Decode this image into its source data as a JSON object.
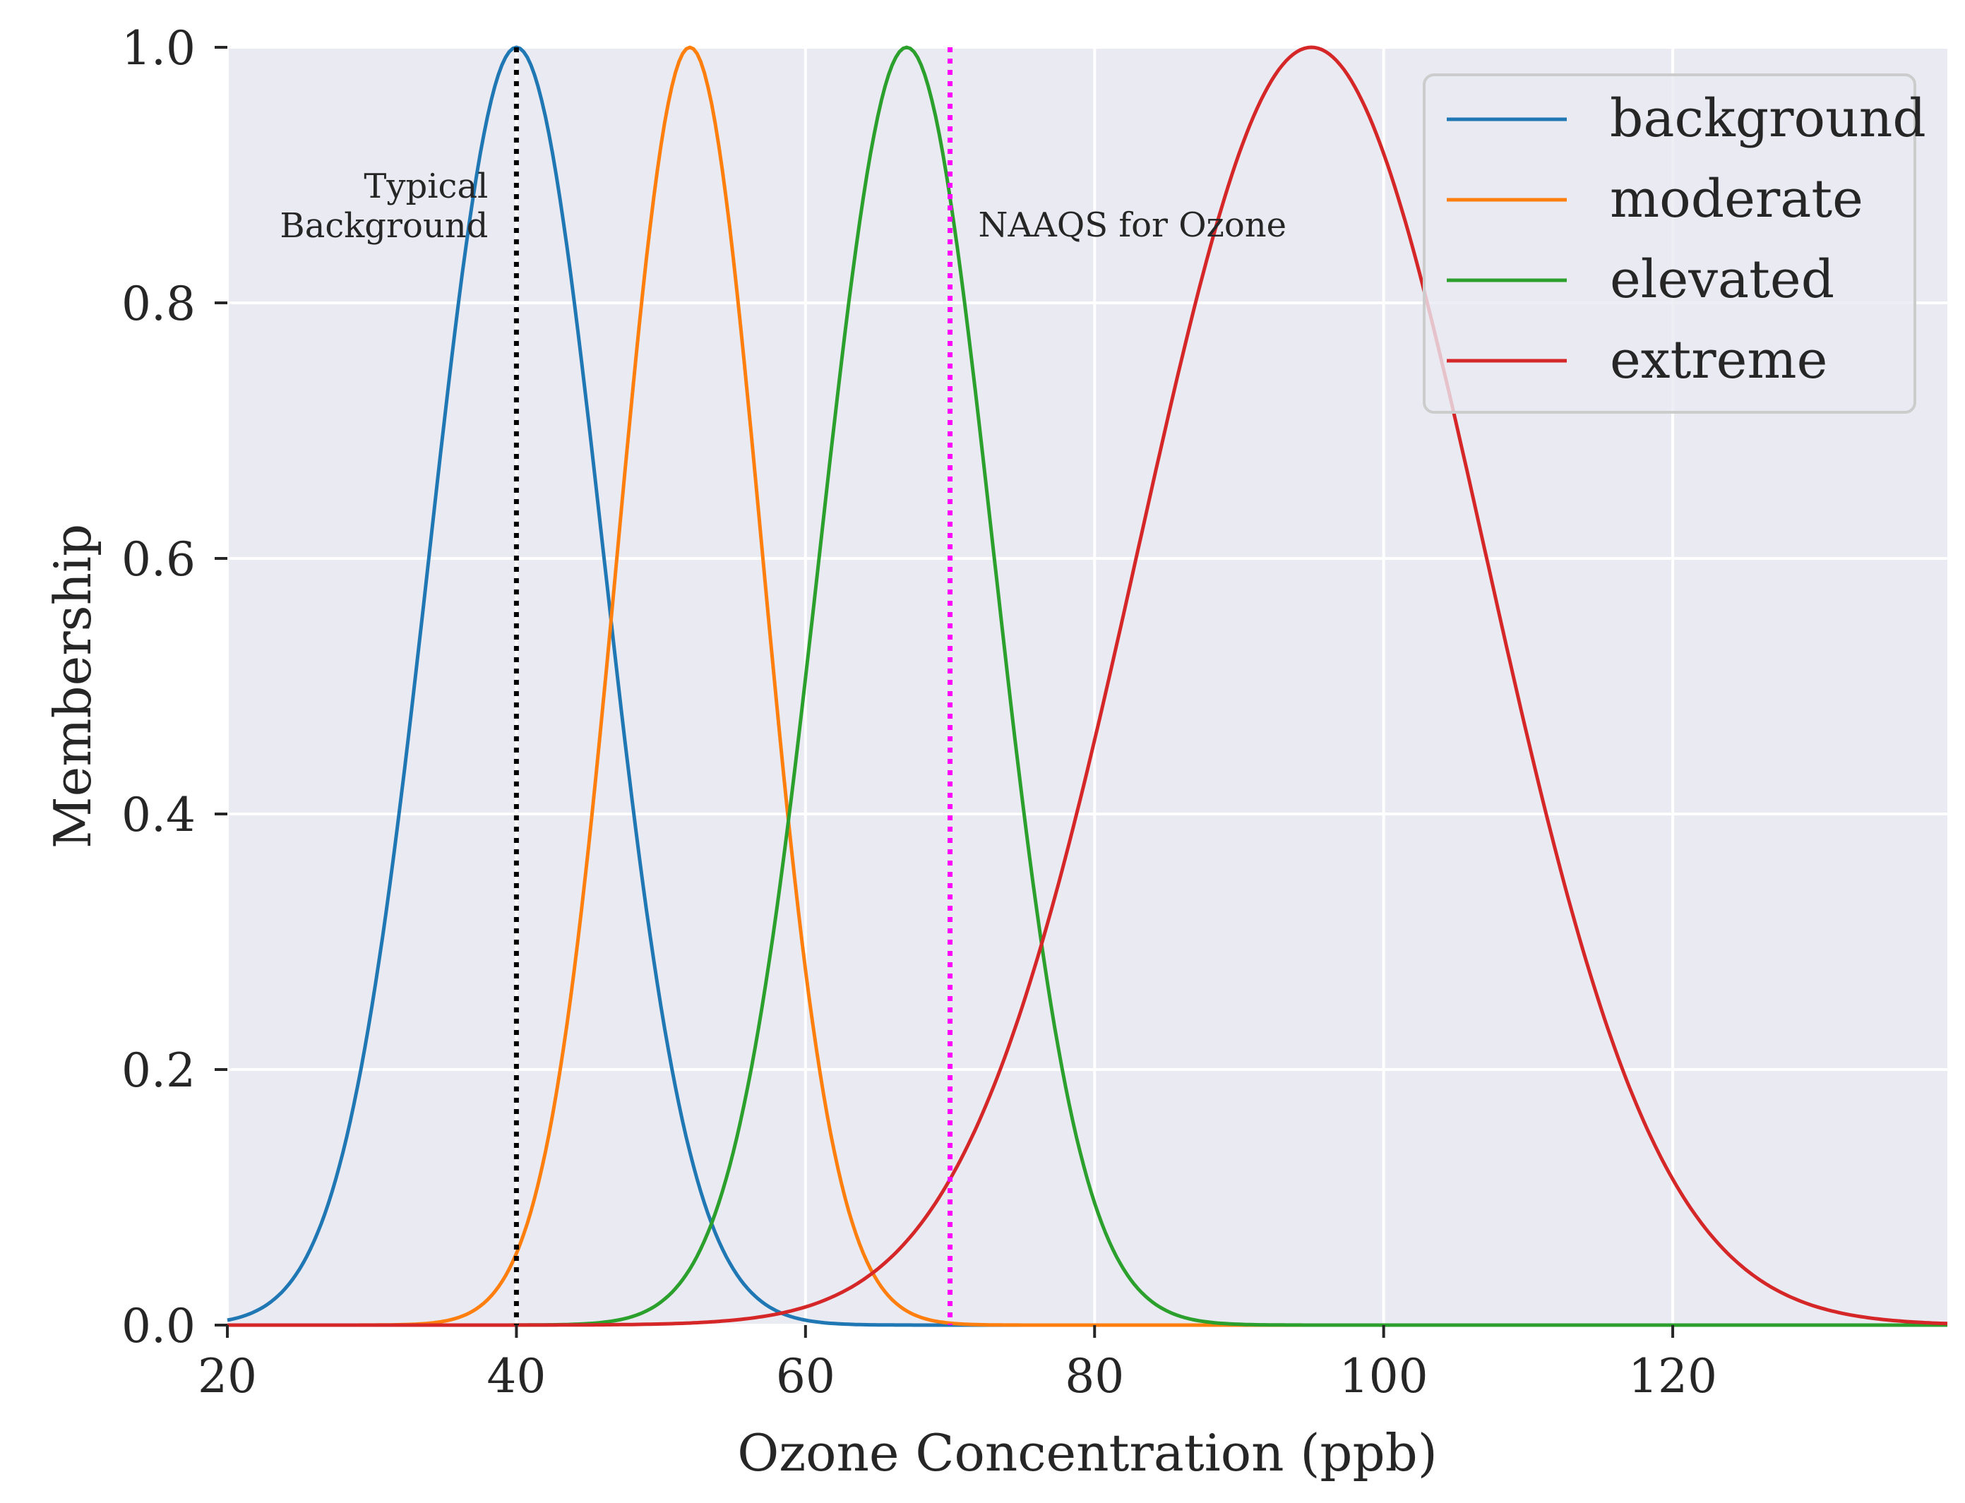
{
  "chart_data": {
    "type": "line",
    "title": "",
    "xlabel": "Ozone Concentration (ppb)",
    "ylabel": "Membership",
    "xlim": [
      20,
      139
    ],
    "ylim": [
      0,
      1
    ],
    "xticks": [
      20,
      40,
      60,
      80,
      100,
      120
    ],
    "yticks": [
      0.0,
      0.2,
      0.4,
      0.6,
      0.8,
      1.0
    ],
    "xtick_labels": [
      "20",
      "40",
      "60",
      "80",
      "100",
      "120"
    ],
    "ytick_labels": [
      "0.0",
      "0.2",
      "0.4",
      "0.6",
      "0.8",
      "1.0"
    ],
    "grid": true,
    "legend_placement": "top-right",
    "background_color": "#EAEAF2",
    "series": [
      {
        "name": "background",
        "shape": "gaussian",
        "mean": 40,
        "sigma": 6,
        "color": "#1f77b4"
      },
      {
        "name": "moderate",
        "shape": "gaussian",
        "mean": 52,
        "sigma": 5,
        "color": "#ff7f0e"
      },
      {
        "name": "elevated",
        "shape": "gaussian",
        "mean": 67,
        "sigma": 6,
        "color": "#2ca02c"
      },
      {
        "name": "extreme",
        "shape": "gaussian",
        "mean": 95,
        "sigma": 12,
        "color": "#d62728"
      }
    ],
    "vlines": [
      {
        "x": 40,
        "color": "#000000",
        "style": "dotted",
        "label_lines": [
          "Typical",
          "Background"
        ],
        "label_side": "left"
      },
      {
        "x": 70,
        "color": "#ff00ff",
        "style": "dotted",
        "label_lines": [
          "NAAQS for Ozone"
        ],
        "label_side": "right"
      }
    ]
  }
}
